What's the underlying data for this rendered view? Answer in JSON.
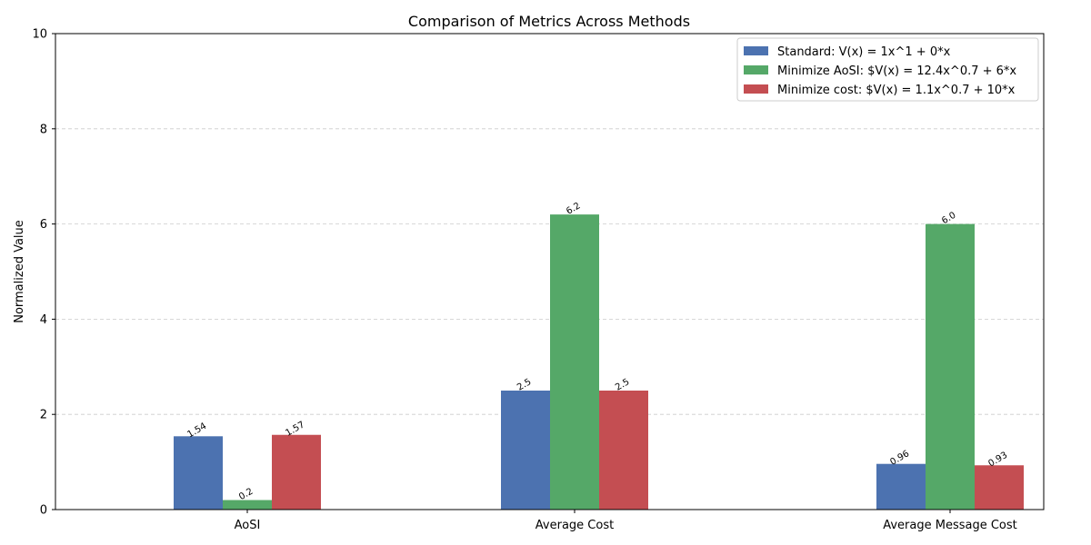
{
  "chart_data": {
    "type": "bar",
    "title": "Comparison of Metrics Across Methods",
    "xlabel": "",
    "ylabel": "Normalized Value",
    "ylim": [
      0,
      10
    ],
    "yticks": [
      0,
      2,
      4,
      6,
      8,
      10
    ],
    "grid": "y-dashed",
    "legend_position": "top-right",
    "categories": [
      "AoSI",
      "Average Cost",
      "Average Message Cost"
    ],
    "series": [
      {
        "name": "Standard: V(x) = 1x^1 + 0*x",
        "color": "#4c72b0",
        "values": [
          1.54,
          2.5,
          0.96
        ],
        "labels": [
          "1.54",
          "2.5",
          "0.96"
        ]
      },
      {
        "name": "Minimize AoSI: $V(x) = 12.4x^0.7 + 6*x",
        "color": "#55a868",
        "values": [
          0.2,
          6.2,
          6.0
        ],
        "labels": [
          "0.2",
          "6.2",
          "6.0"
        ]
      },
      {
        "name": "Minimize cost: $V(x) = 1.1x^0.7 + 10*x",
        "color": "#c44e52",
        "values": [
          1.57,
          2.5,
          0.93
        ],
        "labels": [
          "1.57",
          "2.5",
          "0.93"
        ]
      }
    ]
  }
}
